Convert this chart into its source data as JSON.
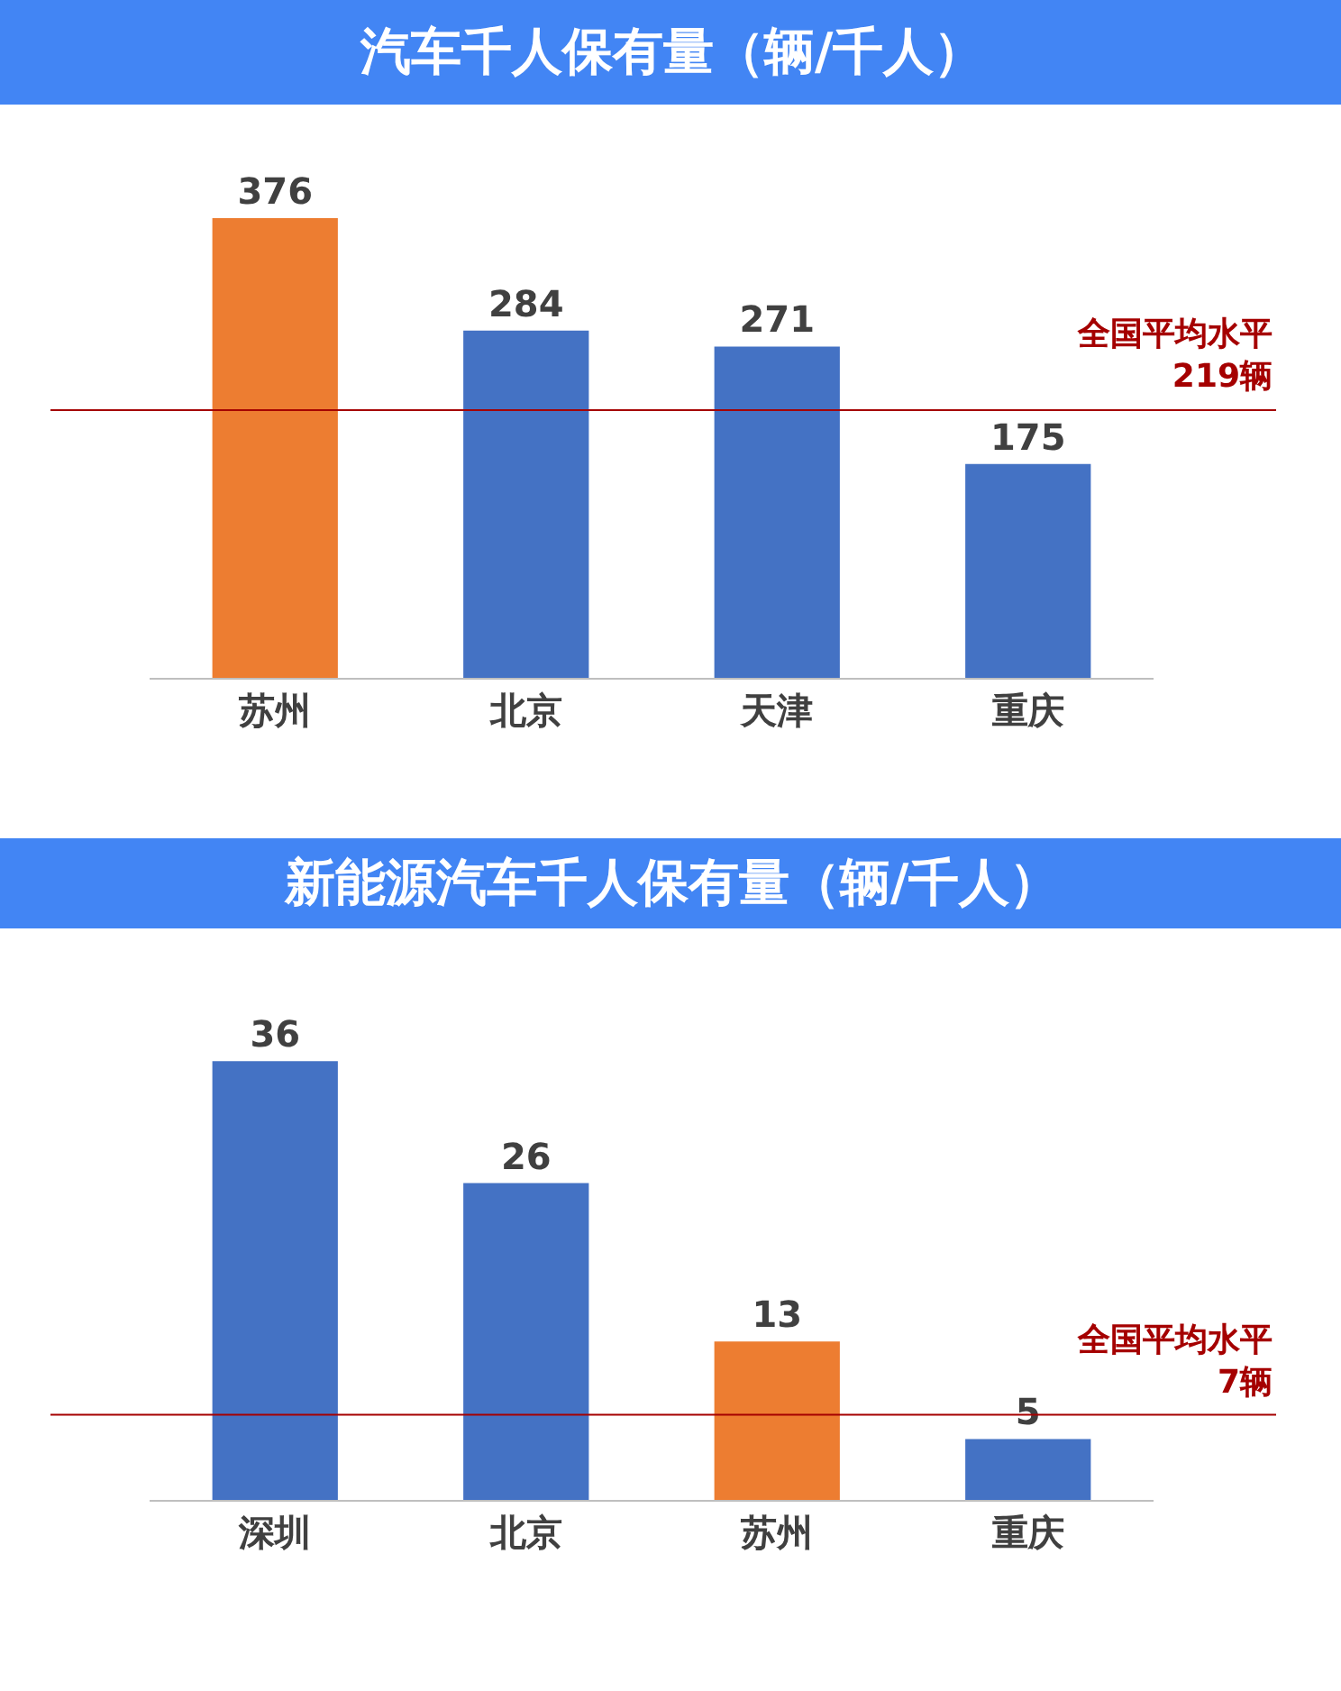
{
  "chart_data": [
    {
      "type": "bar",
      "title": "汽车千人保有量（辆/千人）",
      "categories": [
        "苏州",
        "北京",
        "天津",
        "重庆"
      ],
      "values": [
        376,
        284,
        271,
        175
      ],
      "colors": [
        "#ed7d31",
        "#4472c4",
        "#4472c4",
        "#4472c4"
      ],
      "data_labels": true,
      "ref_lines": [
        {
          "axis": "y",
          "value": 219,
          "label": "全国平均水平\n219辆",
          "color": "#a50000"
        }
      ]
    },
    {
      "type": "bar",
      "title": "新能源汽车千人保有量（辆/千人）",
      "categories": [
        "深圳",
        "北京",
        "苏州",
        "重庆"
      ],
      "values": [
        36,
        26,
        13,
        5
      ],
      "colors": [
        "#4472c4",
        "#4472c4",
        "#ed7d31",
        "#4472c4"
      ],
      "data_labels": true,
      "ref_lines": [
        {
          "axis": "y",
          "value": 7,
          "label": "全国平均水平\n7辆",
          "color": "#a50000"
        }
      ]
    }
  ]
}
